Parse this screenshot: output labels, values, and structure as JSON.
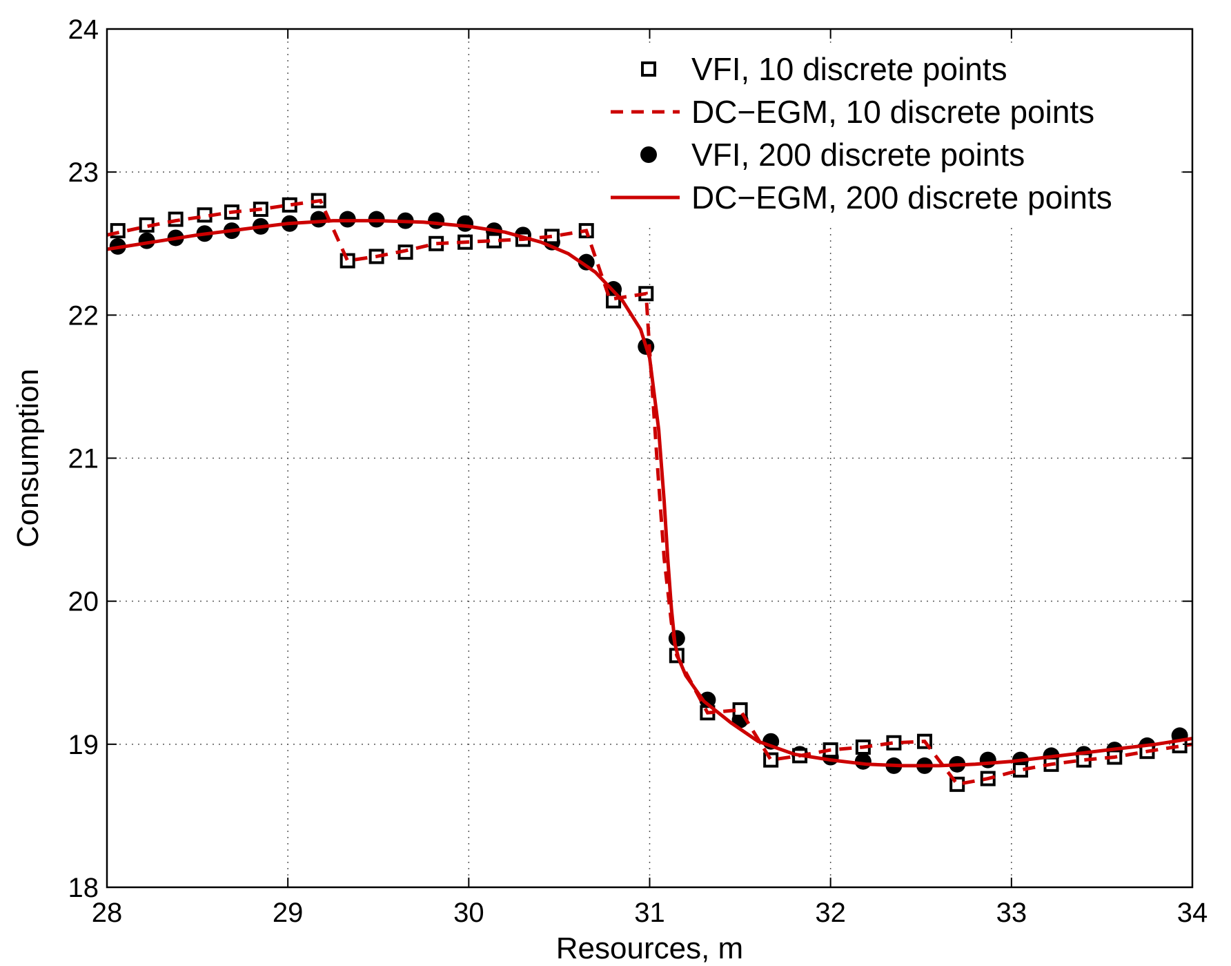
{
  "chart_data": {
    "type": "line",
    "title": "",
    "xlabel": "Resources, m",
    "ylabel": "Consumption",
    "xlim": [
      28,
      34
    ],
    "ylim": [
      18,
      24
    ],
    "xticks": [
      28,
      29,
      30,
      31,
      32,
      33,
      34
    ],
    "yticks": [
      18,
      19,
      20,
      21,
      22,
      23,
      24
    ],
    "grid": true,
    "legend_position": "top-right",
    "colors": {
      "red": "#cc0000",
      "black": "#000000"
    },
    "series": [
      {
        "name": "VFI, 10 discrete points",
        "style": "open-square-markers",
        "x": [
          28.06,
          28.22,
          28.38,
          28.54,
          28.69,
          28.85,
          29.01,
          29.17,
          29.33,
          29.49,
          29.65,
          29.82,
          29.98,
          30.14,
          30.3,
          30.46,
          30.65,
          30.8,
          30.98,
          31.15,
          31.32,
          31.5,
          31.67,
          31.83,
          32.0,
          32.18,
          32.35,
          32.52,
          32.7,
          32.87,
          33.05,
          33.22,
          33.4,
          33.57,
          33.75,
          33.93
        ],
        "y": [
          22.59,
          22.63,
          22.67,
          22.7,
          22.72,
          22.74,
          22.77,
          22.8,
          22.38,
          22.41,
          22.44,
          22.5,
          22.51,
          22.52,
          22.53,
          22.55,
          22.59,
          22.1,
          22.15,
          19.62,
          19.22,
          19.24,
          18.89,
          18.92,
          18.96,
          18.98,
          19.01,
          19.02,
          18.72,
          18.76,
          18.82,
          18.86,
          18.89,
          18.91,
          18.95,
          18.99
        ]
      },
      {
        "name": "DC−EGM, 10 discrete points",
        "style": "dashed-line",
        "x": [
          28.0,
          28.22,
          28.38,
          28.54,
          28.69,
          28.85,
          29.01,
          29.18,
          29.33,
          29.49,
          29.65,
          29.82,
          29.98,
          30.14,
          30.3,
          30.46,
          30.65,
          30.78,
          30.98,
          31.0,
          31.04,
          31.08,
          31.12,
          31.15,
          31.32,
          31.5,
          31.67,
          31.83,
          32.0,
          32.18,
          32.35,
          32.52,
          32.7,
          32.87,
          33.05,
          33.22,
          33.4,
          33.57,
          33.75,
          34.0
        ],
        "y": [
          22.56,
          22.62,
          22.66,
          22.69,
          22.72,
          22.74,
          22.77,
          22.8,
          22.38,
          22.41,
          22.45,
          22.5,
          22.51,
          22.52,
          22.53,
          22.55,
          22.59,
          22.11,
          22.15,
          21.75,
          21.0,
          20.3,
          19.85,
          19.62,
          19.22,
          19.24,
          18.89,
          18.92,
          18.96,
          18.98,
          19.01,
          19.02,
          18.72,
          18.76,
          18.82,
          18.86,
          18.89,
          18.91,
          18.95,
          19.0
        ]
      },
      {
        "name": "VFI, 200 discrete points",
        "style": "filled-circle-markers",
        "x": [
          28.06,
          28.22,
          28.38,
          28.54,
          28.69,
          28.85,
          29.01,
          29.17,
          29.33,
          29.49,
          29.65,
          29.82,
          29.98,
          30.14,
          30.3,
          30.46,
          30.65,
          30.8,
          30.98,
          31.15,
          31.32,
          31.5,
          31.67,
          31.83,
          32.0,
          32.18,
          32.35,
          32.52,
          32.7,
          32.87,
          33.05,
          33.22,
          33.4,
          33.57,
          33.75,
          33.93
        ],
        "y": [
          22.48,
          22.52,
          22.54,
          22.57,
          22.59,
          22.62,
          22.64,
          22.67,
          22.67,
          22.67,
          22.66,
          22.66,
          22.64,
          22.59,
          22.56,
          22.51,
          22.37,
          22.18,
          21.78,
          19.74,
          19.31,
          19.17,
          19.02,
          18.93,
          18.91,
          18.88,
          18.85,
          18.85,
          18.86,
          18.89,
          18.89,
          18.92,
          18.93,
          18.96,
          18.99,
          19.06
        ]
      },
      {
        "name": "DC−EGM, 200 discrete points",
        "style": "solid-line",
        "x": [
          28.0,
          28.25,
          28.5,
          28.75,
          29.0,
          29.25,
          29.5,
          29.75,
          30.0,
          30.2,
          30.4,
          30.55,
          30.7,
          30.85,
          30.95,
          31.0,
          31.05,
          31.08,
          31.1,
          31.12,
          31.14,
          31.16,
          31.2,
          31.3,
          31.45,
          31.6,
          31.8,
          32.0,
          32.2,
          32.4,
          32.6,
          32.8,
          33.0,
          33.2,
          33.4,
          33.6,
          33.8,
          34.0
        ],
        "y": [
          22.46,
          22.51,
          22.56,
          22.6,
          22.64,
          22.66,
          22.66,
          22.65,
          22.62,
          22.58,
          22.51,
          22.43,
          22.3,
          22.1,
          21.9,
          21.7,
          21.2,
          20.7,
          20.3,
          19.95,
          19.7,
          19.6,
          19.48,
          19.3,
          19.15,
          19.02,
          18.93,
          18.89,
          18.86,
          18.85,
          18.85,
          18.86,
          18.88,
          18.91,
          18.94,
          18.97,
          19.0,
          19.04
        ]
      }
    ]
  }
}
